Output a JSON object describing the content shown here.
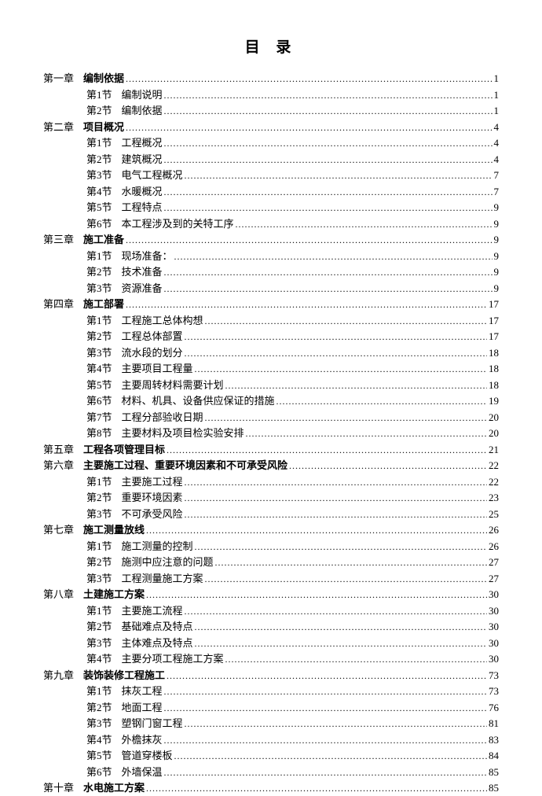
{
  "title": "目  录",
  "chapters": [
    {
      "label": "第一章",
      "title": "编制依据",
      "page": "1",
      "sections": [
        {
          "label": "第1节",
          "title": "编制说明",
          "page": "1"
        },
        {
          "label": "第2节",
          "title": "编制依据",
          "page": "1"
        }
      ]
    },
    {
      "label": "第二章",
      "title": "项目概况",
      "page": "4",
      "sections": [
        {
          "label": "第1节",
          "title": "工程概况",
          "page": "4"
        },
        {
          "label": "第2节",
          "title": "建筑概况",
          "page": "4"
        },
        {
          "label": "第3节",
          "title": "电气工程概况",
          "page": "7"
        },
        {
          "label": "第4节",
          "title": "水暖概况",
          "page": "7"
        },
        {
          "label": "第5节",
          "title": "工程特点",
          "page": "9"
        },
        {
          "label": "第6节",
          "title": "本工程涉及到的关特工序",
          "page": "9"
        }
      ]
    },
    {
      "label": "第三章",
      "title": "施工准备",
      "page": "9",
      "sections": [
        {
          "label": "第1节",
          "title": "现场准备：",
          "page": "9"
        },
        {
          "label": "第2节",
          "title": "技术准备",
          "page": "9"
        },
        {
          "label": "第3节",
          "title": "资源准备",
          "page": "9"
        }
      ]
    },
    {
      "label": "第四章",
      "title": "施工部署",
      "page": "17",
      "sections": [
        {
          "label": "第1节",
          "title": "工程施工总体构想",
          "page": "17"
        },
        {
          "label": "第2节",
          "title": "工程总体部置",
          "page": "17"
        },
        {
          "label": "第3节",
          "title": "流水段的划分",
          "page": "18"
        },
        {
          "label": "第4节",
          "title": "主要项目工程量",
          "page": "18"
        },
        {
          "label": "第5节",
          "title": "主要周转材料需要计划",
          "page": "18"
        },
        {
          "label": "第6节",
          "title": "材料、机具、设备供应保证的措施",
          "page": "19"
        },
        {
          "label": "第7节",
          "title": "工程分部验收日期",
          "page": "20"
        },
        {
          "label": "第8节",
          "title": "主要材料及项目检实验安排",
          "page": "20"
        }
      ]
    },
    {
      "label": "第五章",
      "title": "工程各项管理目标",
      "page": "21",
      "sections": []
    },
    {
      "label": "第六章",
      "title": "主要施工过程、重要环境因素和不可承受风险",
      "page": "22",
      "sections": [
        {
          "label": "第1节",
          "title": "主要施工过程",
          "page": "22"
        },
        {
          "label": "第2节",
          "title": "重要环境因素",
          "page": "23"
        },
        {
          "label": "第3节",
          "title": "不可承受风险",
          "page": "25"
        }
      ]
    },
    {
      "label": "第七章",
      "title": "施工测量放线",
      "page": "26",
      "sections": [
        {
          "label": "第1节",
          "title": "施工测量的控制",
          "page": "26"
        },
        {
          "label": "第2节",
          "title": "施测中应注意的问题",
          "page": "27"
        },
        {
          "label": "第3节",
          "title": "工程测量施工方案",
          "page": "27"
        }
      ]
    },
    {
      "label": "第八章",
      "title": "土建施工方案",
      "page": "30",
      "sections": [
        {
          "label": "第1节",
          "title": "主要施工流程",
          "page": "30"
        },
        {
          "label": "第2节",
          "title": "基础难点及特点",
          "page": "30"
        },
        {
          "label": "第3节",
          "title": "主体难点及特点",
          "page": "30"
        },
        {
          "label": "第4节",
          "title": "主要分项工程施工方案",
          "page": "30"
        }
      ]
    },
    {
      "label": "第九章",
      "title": "装饰装修工程施工",
      "page": "73",
      "sections": [
        {
          "label": "第1节",
          "title": "抹灰工程",
          "page": "73"
        },
        {
          "label": "第2节",
          "title": "地面工程",
          "page": "76"
        },
        {
          "label": "第3节",
          "title": "塑钢门窗工程",
          "page": "81"
        },
        {
          "label": "第4节",
          "title": "外檐抹灰",
          "page": "83"
        },
        {
          "label": "第5节",
          "title": "管道穿楼板",
          "page": "84"
        },
        {
          "label": "第6节",
          "title": "外墙保温",
          "page": "85"
        }
      ]
    },
    {
      "label": "第十章",
      "title": "水电施工方案",
      "page": "85",
      "sections": []
    }
  ]
}
